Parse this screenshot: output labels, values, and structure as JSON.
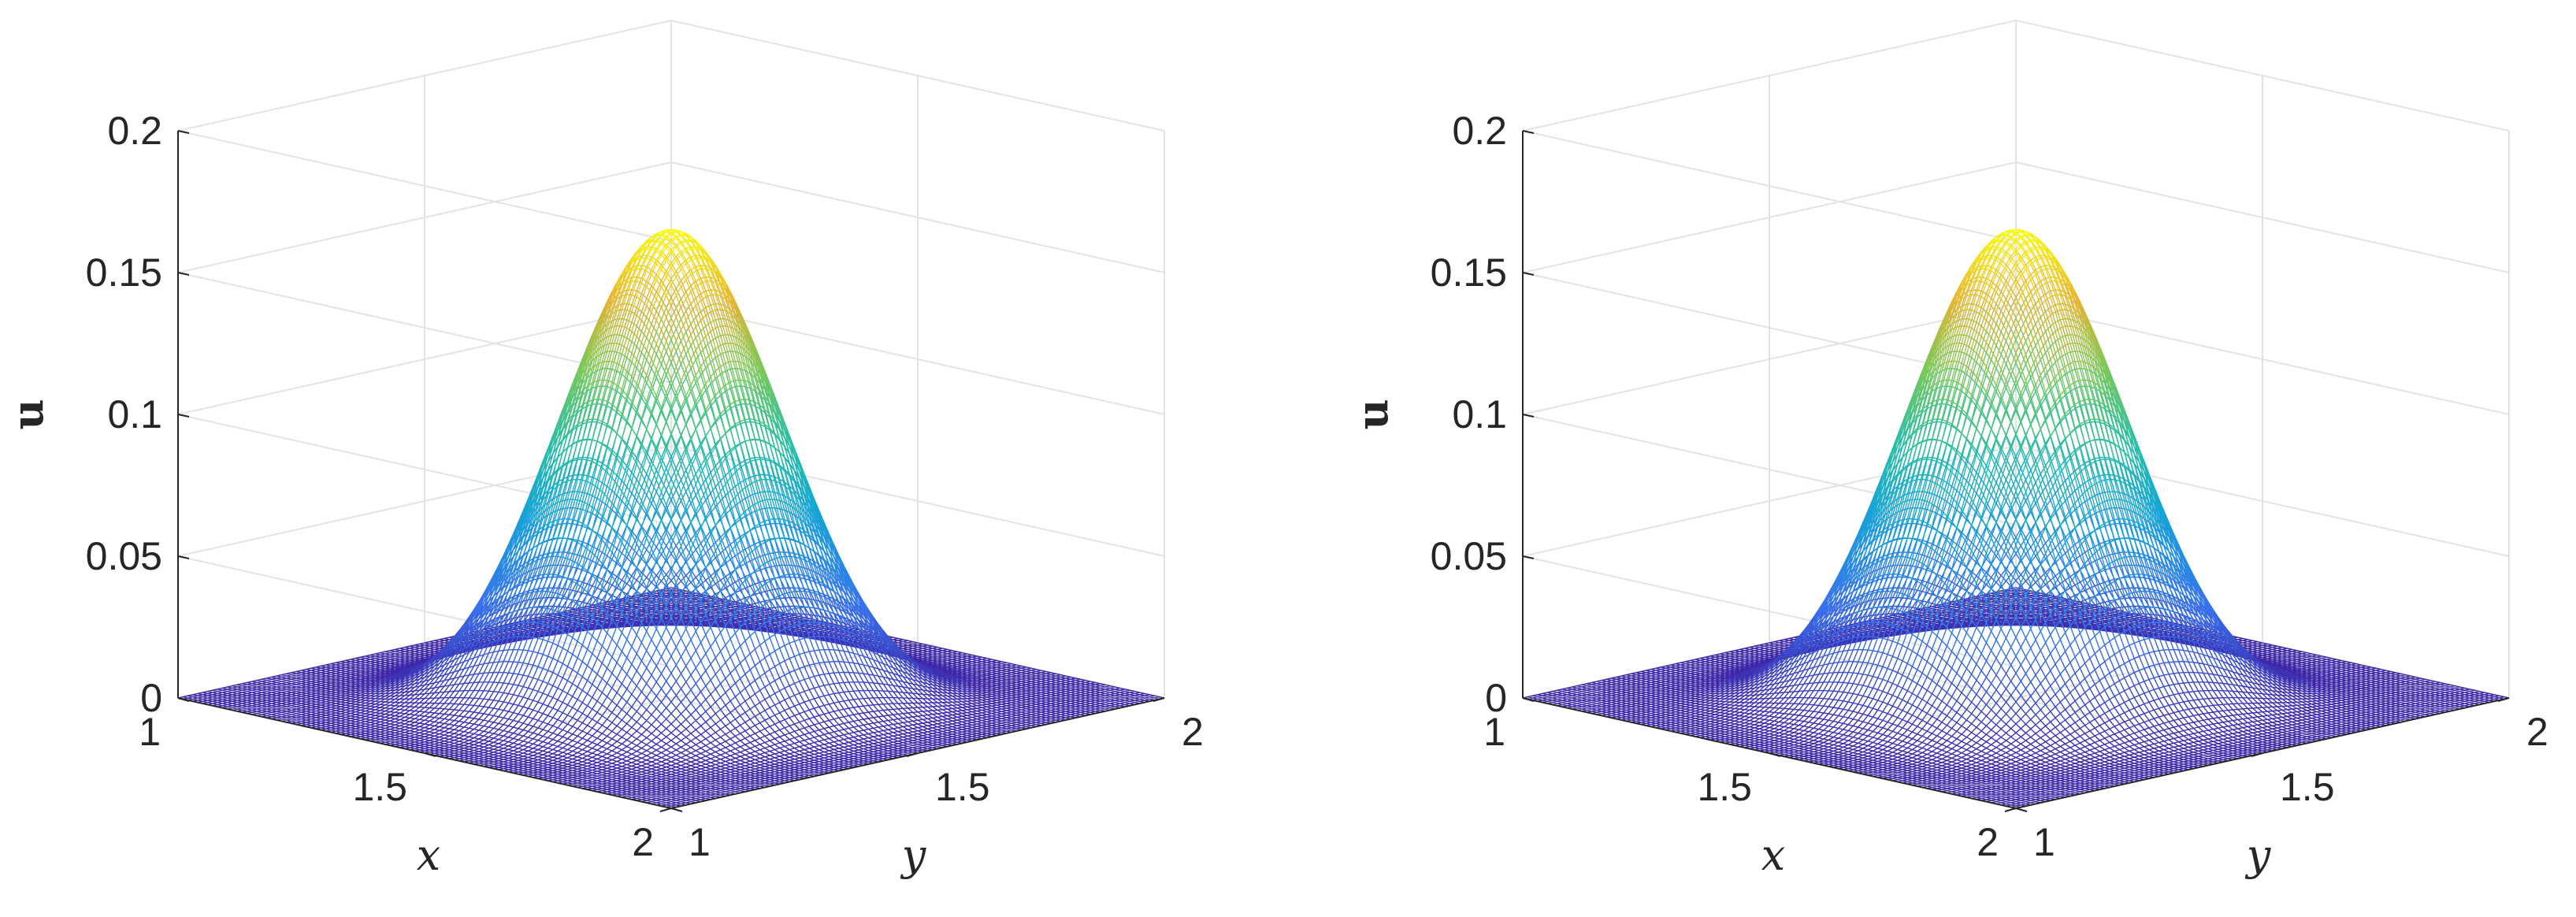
{
  "chart_data": [
    {
      "type": "surface",
      "title": "",
      "xlabel": "x",
      "ylabel": "y",
      "zlabel": "u",
      "xlim": [
        1,
        2
      ],
      "ylim": [
        1,
        2
      ],
      "zlim": [
        0,
        0.2
      ],
      "xticks": [
        "1",
        "1.5",
        "2"
      ],
      "yticks": [
        "1",
        "1.5",
        "2"
      ],
      "zticks": [
        "0",
        "0.05",
        "0.1",
        "0.15",
        "0.2"
      ],
      "peak": {
        "x": 1.5,
        "y": 1.5,
        "u": 0.165
      },
      "grid": true,
      "colormap": "parula",
      "colors": {
        "low": "#3e26a8",
        "mid": "#1fb8c4",
        "high": "#f9fb0e"
      }
    },
    {
      "type": "surface",
      "title": "",
      "xlabel": "x",
      "ylabel": "y",
      "zlabel": "u",
      "xlim": [
        1,
        2
      ],
      "ylim": [
        1,
        2
      ],
      "zlim": [
        0,
        0.2
      ],
      "xticks": [
        "1",
        "1.5",
        "2"
      ],
      "yticks": [
        "1",
        "1.5",
        "2"
      ],
      "zticks": [
        "0",
        "0.05",
        "0.1",
        "0.15",
        "0.2"
      ],
      "peak": {
        "x": 1.5,
        "y": 1.5,
        "u": 0.165
      },
      "grid": true,
      "colormap": "parula",
      "colors": {
        "low": "#3e26a8",
        "mid": "#1fb8c4",
        "high": "#f9fb0e"
      }
    }
  ]
}
